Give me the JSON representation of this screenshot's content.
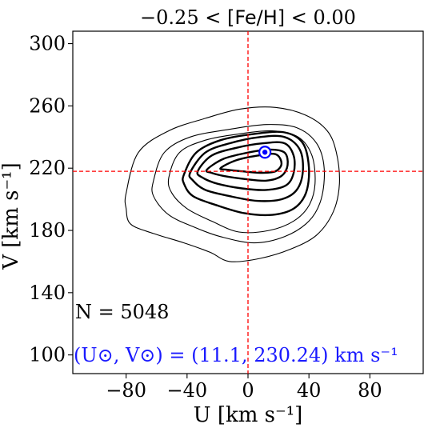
{
  "chart_data": {
    "type": "contour",
    "title_parts": {
      "lower": "−0.25 <",
      "feh": "[Fe/H]",
      "upper": "< 0.00"
    },
    "xlabel": "U [km s⁻¹]",
    "ylabel": "V [km s⁻¹]",
    "xlim": [
      -115,
      115
    ],
    "ylim": [
      88,
      308
    ],
    "xticks": [
      -80,
      -40,
      0,
      40,
      80
    ],
    "xtick_labels": [
      "−80",
      "−40",
      "0",
      "40",
      "80"
    ],
    "yticks": [
      100,
      140,
      180,
      220,
      260,
      300
    ],
    "ytick_labels": [
      "100",
      "140",
      "180",
      "220",
      "260",
      "300"
    ],
    "reference_lines": {
      "x": 0,
      "y": 218,
      "color": "#ff0000",
      "style": "dashed"
    },
    "sun_marker": {
      "u": 11.1,
      "v": 230.24,
      "color": "#0000ff"
    },
    "annotations": {
      "n_text": "N = 5048",
      "sun_text": "(U⊙, V⊙) = (11.1, 230.24) km s⁻¹"
    },
    "contour_levels": [
      {
        "weight": 1.1,
        "points": [
          [
            -80,
            204
          ],
          [
            -72,
            230
          ],
          [
            -52,
            244
          ],
          [
            -28,
            252
          ],
          [
            -5,
            258
          ],
          [
            18,
            259
          ],
          [
            38,
            254
          ],
          [
            52,
            244
          ],
          [
            58,
            230
          ],
          [
            60,
            210
          ],
          [
            56,
            192
          ],
          [
            45,
            177
          ],
          [
            28,
            168
          ],
          [
            8,
            162
          ],
          [
            -12,
            160
          ],
          [
            -25,
            166
          ],
          [
            -42,
            172
          ],
          [
            -62,
            178
          ],
          [
            -77,
            184
          ],
          [
            -80,
            194
          ]
        ]
      },
      {
        "weight": 1.1,
        "points": [
          [
            -62,
            212
          ],
          [
            -55,
            230
          ],
          [
            -38,
            240
          ],
          [
            -12,
            245
          ],
          [
            12,
            248
          ],
          [
            32,
            246
          ],
          [
            45,
            236
          ],
          [
            50,
            220
          ],
          [
            48,
            200
          ],
          [
            40,
            186
          ],
          [
            24,
            176
          ],
          [
            4,
            172
          ],
          [
            -18,
            176
          ],
          [
            -35,
            182
          ],
          [
            -52,
            190
          ],
          [
            -62,
            202
          ]
        ]
      },
      {
        "weight": 1.1,
        "points": [
          [
            -52,
            214
          ],
          [
            -45,
            230
          ],
          [
            -28,
            238
          ],
          [
            -6,
            242
          ],
          [
            16,
            244
          ],
          [
            33,
            240
          ],
          [
            42,
            228
          ],
          [
            44,
            210
          ],
          [
            40,
            196
          ],
          [
            30,
            186
          ],
          [
            14,
            180
          ],
          [
            -6,
            179
          ],
          [
            -24,
            186
          ],
          [
            -40,
            194
          ],
          [
            -50,
            204
          ]
        ]
      },
      {
        "weight": 2.4,
        "points": [
          [
            -42,
            216
          ],
          [
            -34,
            230
          ],
          [
            -18,
            238
          ],
          [
            4,
            242
          ],
          [
            24,
            243
          ],
          [
            36,
            236
          ],
          [
            40,
            220
          ],
          [
            38,
            204
          ],
          [
            30,
            194
          ],
          [
            16,
            190
          ],
          [
            -2,
            191
          ],
          [
            -20,
            196
          ],
          [
            -36,
            202
          ],
          [
            -42,
            210
          ]
        ]
      },
      {
        "weight": 2.4,
        "points": [
          [
            -38,
            217
          ],
          [
            -28,
            230
          ],
          [
            -12,
            236
          ],
          [
            8,
            240
          ],
          [
            24,
            240
          ],
          [
            34,
            232
          ],
          [
            36,
            218
          ],
          [
            32,
            206
          ],
          [
            22,
            200
          ],
          [
            6,
            199
          ],
          [
            -12,
            202
          ],
          [
            -28,
            206
          ],
          [
            -36,
            212
          ]
        ]
      },
      {
        "weight": 2.4,
        "points": [
          [
            -33,
            218
          ],
          [
            -24,
            228
          ],
          [
            -8,
            233
          ],
          [
            10,
            236
          ],
          [
            24,
            236
          ],
          [
            30,
            228
          ],
          [
            30,
            217
          ],
          [
            25,
            209
          ],
          [
            12,
            206
          ],
          [
            -4,
            207
          ],
          [
            -20,
            210
          ],
          [
            -30,
            214
          ]
        ]
      },
      {
        "weight": 2.4,
        "points": [
          [
            -27,
            219
          ],
          [
            -16,
            226
          ],
          [
            0,
            230
          ],
          [
            14,
            232
          ],
          [
            24,
            230
          ],
          [
            26,
            222
          ],
          [
            22,
            215
          ],
          [
            12,
            212
          ],
          [
            -2,
            213
          ],
          [
            -16,
            215
          ],
          [
            -24,
            217
          ]
        ]
      },
      {
        "weight": 2.4,
        "points": [
          [
            -18,
            220
          ],
          [
            -8,
            225
          ],
          [
            6,
            228
          ],
          [
            18,
            229
          ],
          [
            22,
            223
          ],
          [
            18,
            218
          ],
          [
            8,
            217
          ],
          [
            -4,
            218
          ],
          [
            -14,
            219
          ]
        ]
      }
    ]
  }
}
